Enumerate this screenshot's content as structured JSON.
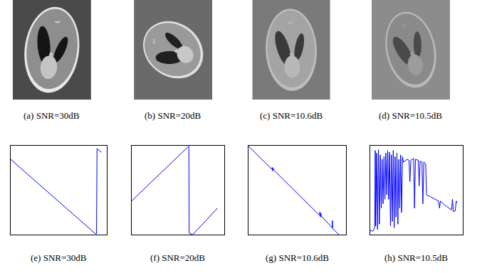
{
  "images": [
    {
      "caption": "(a) SNR=30dB"
    },
    {
      "caption": "(b) SNR=20dB"
    },
    {
      "caption": "(c) SNR=10.6dB"
    },
    {
      "caption": "(d) SNR=10.5dB"
    }
  ],
  "chart_data": [
    {
      "type": "line",
      "title": "(e) SNR=30dB",
      "color": "#0000ff",
      "tick_labels": false,
      "xlim": [
        0,
        100
      ],
      "ylim": [
        0,
        100
      ],
      "x": [
        0,
        88,
        89,
        89.5,
        94
      ],
      "values": [
        85,
        1,
        1,
        97,
        93
      ]
    },
    {
      "type": "line",
      "title": "(f) SNR=20dB",
      "color": "#0000ff",
      "tick_labels": false,
      "xlim": [
        0,
        100
      ],
      "ylim": [
        0,
        100
      ],
      "x": [
        0,
        62,
        62.3,
        66,
        93
      ],
      "values": [
        38,
        100,
        2,
        0,
        30
      ]
    },
    {
      "type": "line",
      "title": "(g) SNR=10.6dB",
      "color": "#0000ff",
      "tick_labels": false,
      "xlim": [
        0,
        100
      ],
      "ylim": [
        0,
        100
      ],
      "x": [
        0,
        24,
        24.5,
        25,
        25.5,
        26,
        50,
        73,
        73.5,
        74,
        74.5,
        75,
        86,
        86.3,
        86.6,
        93
      ],
      "values": [
        100,
        74,
        76,
        72,
        75,
        73,
        47,
        22,
        26,
        20,
        24,
        21,
        8,
        16,
        7,
        0
      ]
    },
    {
      "type": "line",
      "title": "(h) SNR=10.5dB",
      "color": "#0000ff",
      "tick_labels": false,
      "xlim": [
        0,
        100
      ],
      "ylim": [
        0,
        100
      ],
      "x": [
        0,
        3,
        5,
        5.5,
        6,
        7,
        8,
        9,
        10,
        11,
        12,
        13,
        14,
        15,
        16,
        17,
        18,
        19,
        20,
        21,
        22,
        23,
        24,
        25,
        26,
        27,
        28,
        29,
        30,
        31,
        32,
        33,
        34,
        35,
        36,
        40,
        42,
        43,
        44,
        47,
        48,
        49,
        52,
        53,
        54,
        56,
        57,
        58,
        60,
        61,
        65,
        70,
        74,
        75,
        76,
        80,
        85,
        88,
        89,
        90,
        92,
        93,
        94
      ],
      "values": [
        5,
        4,
        8,
        95,
        10,
        92,
        6,
        96,
        12,
        90,
        30,
        85,
        35,
        88,
        40,
        92,
        45,
        95,
        40,
        93,
        10,
        90,
        15,
        95,
        8,
        88,
        20,
        92,
        12,
        85,
        30,
        90,
        25,
        88,
        82,
        85,
        84,
        60,
        84,
        86,
        30,
        85,
        84,
        55,
        83,
        82,
        35,
        82,
        80,
        45,
        43,
        40,
        38,
        30,
        38,
        34,
        30,
        28,
        40,
        26,
        27,
        38,
        36
      ]
    }
  ]
}
